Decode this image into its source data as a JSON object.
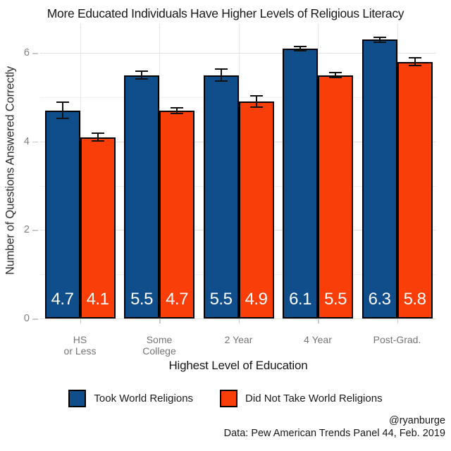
{
  "chart_data": {
    "type": "bar",
    "title": "More Educated Individuals Have Higher Levels of Religious Literacy",
    "xlabel": "Highest Level of Education",
    "ylabel": "Number of Questions Answered Correctly",
    "categories": [
      [
        "HS",
        "or Less"
      ],
      [
        "Some",
        "College"
      ],
      [
        "2 Year"
      ],
      [
        "4 Year"
      ],
      [
        "Post-Grad."
      ]
    ],
    "series": [
      {
        "name": "Took World Religions",
        "color": "#104E8B",
        "values": [
          4.7,
          5.5,
          5.5,
          6.1,
          6.3
        ],
        "errors": [
          0.2,
          0.1,
          0.15,
          0.06,
          0.07
        ]
      },
      {
        "name": "Did Not Take World Religions",
        "color": "#FA3E09",
        "values": [
          4.1,
          4.7,
          4.9,
          5.5,
          5.8
        ],
        "errors": [
          0.1,
          0.08,
          0.14,
          0.07,
          0.1
        ]
      }
    ],
    "bar_value_labels": [
      [
        "4.7",
        "5.5",
        "5.5",
        "6.1",
        "6.3"
      ],
      [
        "4.1",
        "4.7",
        "4.9",
        "5.5",
        "5.8"
      ]
    ],
    "y_ticks": [
      0,
      2,
      4,
      6
    ],
    "y_minor_gridlines": [
      1,
      3,
      5
    ],
    "ylim": [
      0,
      6.67
    ],
    "grid": true,
    "legend_position": "bottom",
    "error_bars": true,
    "bar_outline_color": "#000000",
    "value_label_color": "#FFFFFF"
  },
  "caption": {
    "handle": "@ryanburge",
    "source": "Data: Pew American Trends Panel 44, Feb. 2019"
  },
  "colors": {
    "took_world_religions": "#104E8B",
    "did_not_take": "#FA3E09",
    "grid_major": "#E0E0E0",
    "grid_minor": "#F0F0F0",
    "axis_text": "#7F7F7F",
    "text": "#171717"
  }
}
